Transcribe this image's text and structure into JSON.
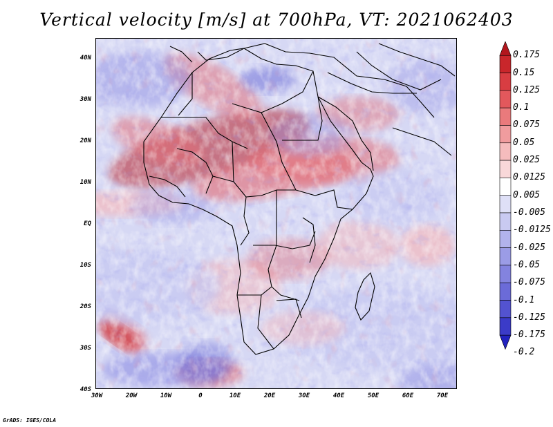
{
  "title": "Vertical velocity [m/s] at 700hPa, VT: 2021062403",
  "map": {
    "lat_labels": [
      "40N",
      "30N",
      "20N",
      "10N",
      "EQ",
      "10S",
      "20S",
      "30S",
      "40S"
    ],
    "lon_labels": [
      "30W",
      "20W",
      "10W",
      "0",
      "10E",
      "20E",
      "30E",
      "40E",
      "50E",
      "60E",
      "70E"
    ],
    "field_colors": {
      "base": "#d6d8f4",
      "strong_up": "#b8222a",
      "up": "#e46a72",
      "weak_up": "#f4b9bd",
      "weak_down": "#c5c7f2",
      "down": "#8f8fe4",
      "strong_down": "#4f4fcf",
      "border": "#000000"
    }
  },
  "colorbar": {
    "labels": [
      "0.175",
      "0.15",
      "0.125",
      "0.1",
      "0.075",
      "0.05",
      "0.025",
      "0.0125",
      "0.005",
      "-0.005",
      "-0.0125",
      "-0.025",
      "-0.05",
      "-0.075",
      "-0.1",
      "-0.125",
      "-0.175",
      "-0.2"
    ],
    "colors": [
      "#b2161d",
      "#c9262b",
      "#d83d42",
      "#e2585c",
      "#ea7a7c",
      "#f09c9e",
      "#f5bcbd",
      "#f9d8d9",
      "#ffffff",
      "#dfe0f7",
      "#c9caf1",
      "#b2b3ec",
      "#9b9ce6",
      "#8383df",
      "#6b6bd8",
      "#5353d0",
      "#3b3bc8",
      "#2222bf"
    ]
  },
  "credit": "GrADS: IGES/COLA"
}
